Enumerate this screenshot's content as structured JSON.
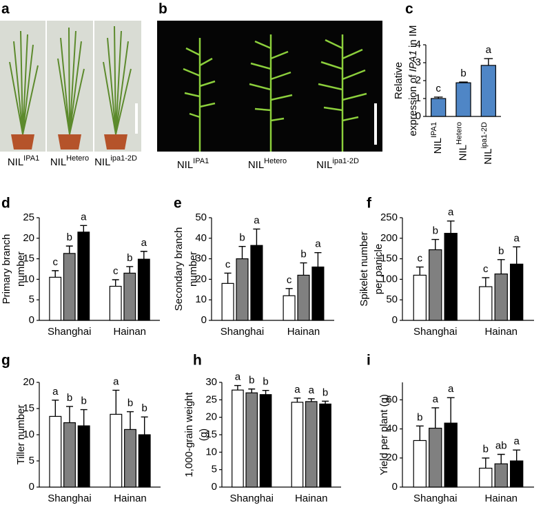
{
  "photos": [
    {
      "label": "a",
      "captions": [
        {
          "base": "NIL",
          "sup": "IPA1"
        },
        {
          "base": "NIL",
          "sup": "Hetero"
        },
        {
          "base": "NIL",
          "sup": "ipa1-2D"
        }
      ]
    },
    {
      "label": "b",
      "captions": [
        {
          "base": "NIL",
          "sup": "IPA1"
        },
        {
          "base": "NIL",
          "sup": "Hetero"
        },
        {
          "base": "NIL",
          "sup": "ipa1-2D"
        }
      ]
    }
  ],
  "chart_data": [
    {
      "type": "bar",
      "label": "c",
      "ylabel": [
        "Relative",
        "expression of"
      ],
      "ylabel_italic": "IPA1",
      "ylabel_end": "in IM",
      "categories": [
        "NIL",
        "NIL",
        "NIL"
      ],
      "category_sups": [
        "IPA1",
        "Hetero",
        "ipa1-2D"
      ],
      "values": [
        1.0,
        1.88,
        2.85
      ],
      "errors": [
        0.08,
        0.04,
        0.38
      ],
      "letters": [
        "c",
        "b",
        "a"
      ],
      "color": "#4f86c6",
      "ylim": [
        0,
        4
      ],
      "yticks": [
        0,
        1,
        2,
        3,
        4
      ]
    },
    {
      "type": "grouped-bar",
      "label": "d",
      "ylabel": [
        "Primary branch",
        "number"
      ],
      "categories": [
        "Shanghai",
        "Hainan"
      ],
      "series": [
        {
          "color": "#ffffff",
          "values": [
            10.5,
            8.3
          ],
          "errors": [
            1.6,
            1.6
          ],
          "letters": [
            "c",
            "c"
          ]
        },
        {
          "color": "#808080",
          "values": [
            16.3,
            11.5
          ],
          "errors": [
            1.8,
            1.6
          ],
          "letters": [
            "b",
            "b"
          ]
        },
        {
          "color": "#000000",
          "values": [
            21.5,
            14.9
          ],
          "errors": [
            1.6,
            1.9
          ],
          "letters": [
            "a",
            "a"
          ]
        }
      ],
      "ylim": [
        0,
        25
      ],
      "yticks": [
        0,
        5,
        10,
        15,
        20,
        25
      ]
    },
    {
      "type": "grouped-bar",
      "label": "e",
      "ylabel": [
        "Secondary branch",
        "number"
      ],
      "categories": [
        "Shanghai",
        "Hainan"
      ],
      "series": [
        {
          "color": "#ffffff",
          "values": [
            18,
            12
          ],
          "errors": [
            5,
            3.5
          ],
          "letters": [
            "c",
            "c"
          ]
        },
        {
          "color": "#808080",
          "values": [
            30,
            22
          ],
          "errors": [
            6,
            6
          ],
          "letters": [
            "b",
            "b"
          ]
        },
        {
          "color": "#000000",
          "values": [
            36.5,
            26
          ],
          "errors": [
            8,
            7
          ],
          "letters": [
            "a",
            "a"
          ]
        }
      ],
      "ylim": [
        0,
        50
      ],
      "yticks": [
        0,
        10,
        20,
        30,
        40,
        50
      ]
    },
    {
      "type": "grouped-bar",
      "label": "f",
      "ylabel": [
        "Spikelet number",
        "per panicle"
      ],
      "categories": [
        "Shanghai",
        "Hainan"
      ],
      "series": [
        {
          "color": "#ffffff",
          "values": [
            110,
            82
          ],
          "errors": [
            20,
            22
          ],
          "letters": [
            "c",
            "c"
          ]
        },
        {
          "color": "#808080",
          "values": [
            172,
            113
          ],
          "errors": [
            25,
            35
          ],
          "letters": [
            "b",
            "b"
          ]
        },
        {
          "color": "#000000",
          "values": [
            212,
            137
          ],
          "errors": [
            30,
            42
          ],
          "letters": [
            "a",
            "a"
          ]
        }
      ],
      "ylim": [
        0,
        250
      ],
      "yticks": [
        0,
        50,
        100,
        150,
        200,
        250
      ]
    },
    {
      "type": "grouped-bar",
      "label": "g",
      "ylabel": [
        "Tiller number"
      ],
      "categories": [
        "Shanghai",
        "Hainan"
      ],
      "series": [
        {
          "color": "#ffffff",
          "values": [
            13.5,
            13.9
          ],
          "errors": [
            3.1,
            4.6
          ],
          "letters": [
            "a",
            "a"
          ]
        },
        {
          "color": "#808080",
          "values": [
            12.3,
            11
          ],
          "errors": [
            3.1,
            3.4
          ],
          "letters": [
            "b",
            "b"
          ]
        },
        {
          "color": "#000000",
          "values": [
            11.7,
            10
          ],
          "errors": [
            3.1,
            3.4
          ],
          "letters": [
            "b",
            "b"
          ]
        }
      ],
      "ylim": [
        0,
        20
      ],
      "yticks": [
        0,
        5,
        10,
        15,
        20
      ]
    },
    {
      "type": "grouped-bar",
      "label": "h",
      "ylabel": [
        "1,000-grain weight",
        "(g)"
      ],
      "categories": [
        "Shanghai",
        "Hainan"
      ],
      "series": [
        {
          "color": "#ffffff",
          "values": [
            27.8,
            24.3
          ],
          "errors": [
            1.3,
            1.2
          ],
          "letters": [
            "a",
            "a"
          ]
        },
        {
          "color": "#808080",
          "values": [
            27,
            24.5
          ],
          "errors": [
            1.1,
            0.8
          ],
          "letters": [
            "b",
            "a"
          ]
        },
        {
          "color": "#000000",
          "values": [
            26.5,
            23.8
          ],
          "errors": [
            1.2,
            0.8
          ],
          "letters": [
            "b",
            "b"
          ]
        }
      ],
      "ylim": [
        0,
        30
      ],
      "yticks": [
        0,
        5,
        10,
        15,
        20,
        25,
        30
      ]
    },
    {
      "type": "grouped-bar",
      "label": "i",
      "ylabel": [
        "Yield per plant (g)"
      ],
      "categories": [
        "Shanghai",
        "Hainan"
      ],
      "series": [
        {
          "color": "#ffffff",
          "values": [
            32,
            13
          ],
          "errors": [
            10,
            7
          ],
          "letters": [
            "b",
            "b"
          ]
        },
        {
          "color": "#808080",
          "values": [
            40.5,
            16
          ],
          "errors": [
            14,
            6.5
          ],
          "letters": [
            "a",
            "ab"
          ]
        },
        {
          "color": "#000000",
          "values": [
            44,
            18
          ],
          "errors": [
            17.5,
            7.5
          ],
          "letters": [
            "a",
            "a"
          ]
        }
      ],
      "ylim": [
        0,
        72
      ],
      "yticks": [
        0,
        20,
        40,
        60
      ]
    }
  ]
}
